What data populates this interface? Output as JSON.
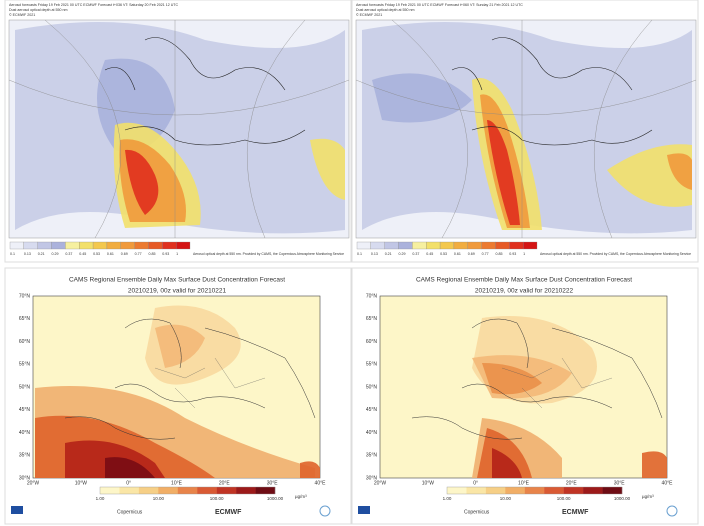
{
  "top_panels": [
    {
      "header": [
        "Aerosol forecasts Friday 19 Feb 2021 00 UTC ECMWF Forecast t+036 VT: Saturday 20 Feb 2021 12 UTC",
        "Dust aerosol optical depth at 550 nm",
        "© ECMWF 2021"
      ],
      "colorbar_labels": [
        "0.1",
        "0.13",
        "0.21",
        "0.29",
        "0.37",
        "0.45",
        "0.53",
        "0.61",
        "0.69",
        "0.77",
        "0.85",
        "0.93",
        "1"
      ],
      "footer": "Aerosol optical depth at 550 nm. Provided by CAMS, the Copernicus Atmosphere Monitoring Service"
    },
    {
      "header": [
        "Aerosol forecasts Friday 19 Feb 2021 00 UTC ECMWF Forecast t+060 VT: Sunday 21 Feb 2021 12 UTC",
        "Dust aerosol optical depth at 550 nm",
        "© ECMWF 2021"
      ],
      "colorbar_labels": [
        "0.1",
        "0.13",
        "0.21",
        "0.29",
        "0.37",
        "0.45",
        "0.53",
        "0.61",
        "0.69",
        "0.77",
        "0.85",
        "0.93",
        "1"
      ],
      "footer": "Aerosol optical depth at 550 nm. Provided by CAMS, the Copernicus Atmosphere Monitoring Service"
    }
  ],
  "bottom_panels": [
    {
      "title": "CAMS Regional Ensemble Daily Max Surface Dust Concentration Forecast",
      "subtitle": "20210219, 00z valid for 20210221",
      "lat_labels": [
        "70°N",
        "65°N",
        "60°N",
        "55°N",
        "50°N",
        "45°N",
        "40°N",
        "35°N",
        "30°N"
      ],
      "lon_labels": [
        "20°W",
        "10°W",
        "0°",
        "10°E",
        "20°E",
        "30°E",
        "40°E"
      ],
      "colorbar_labels": [
        "1.00",
        "10.00",
        "100.00",
        "1000.00"
      ],
      "unit": "µg/m³",
      "logos": [
        "Copernicus",
        "ECMWF"
      ]
    },
    {
      "title": "CAMS Regional Ensemble Daily Max Surface Dust Concentration Forecast",
      "subtitle": "20210219, 00z valid for 20210222",
      "lat_labels": [
        "70°N",
        "65°N",
        "60°N",
        "55°N",
        "50°N",
        "45°N",
        "40°N",
        "35°N",
        "30°N"
      ],
      "lon_labels": [
        "20°W",
        "10°W",
        "0°",
        "10°E",
        "20°E",
        "30°E",
        "40°E"
      ],
      "colorbar_labels": [
        "1.00",
        "10.00",
        "100.00",
        "1000.00"
      ],
      "unit": "µg/m³",
      "logos": [
        "Copernicus",
        "ECMWF"
      ]
    }
  ]
}
